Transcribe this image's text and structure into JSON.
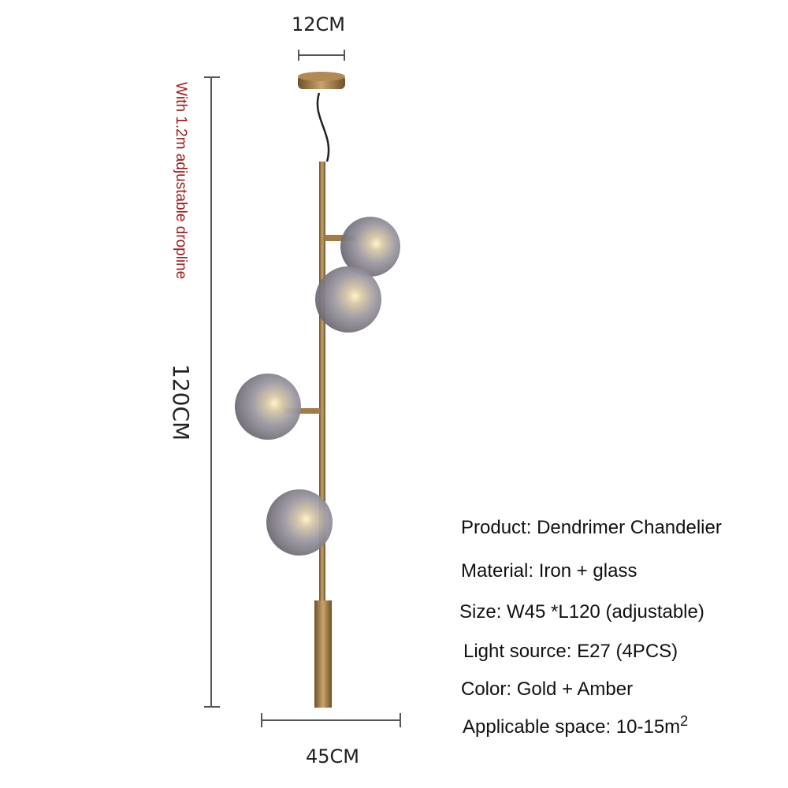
{
  "dimensions": {
    "top_width": "12CM",
    "height": "120CM",
    "bottom_width": "45CM",
    "dropline_note": "With 1.2m adjustable dropline"
  },
  "specs": [
    {
      "label": "Product:",
      "value": "Dendrimer Chandelier"
    },
    {
      "label": "Material:",
      "value": "Iron + glass"
    },
    {
      "label": "Size:",
      "value": "W45 *L120 (adjustable)"
    },
    {
      "label": "Light source:",
      "value": "E27 (4PCS)"
    },
    {
      "label": "Color:",
      "value": "Gold + Amber"
    },
    {
      "label": "Applicable space:",
      "value": "10-15m",
      "superscript": "2"
    }
  ],
  "colors": {
    "dropline_note": "#a01818",
    "gold": "#9c7a45",
    "glass": "#8a8790",
    "dimension_line": "#555555"
  }
}
